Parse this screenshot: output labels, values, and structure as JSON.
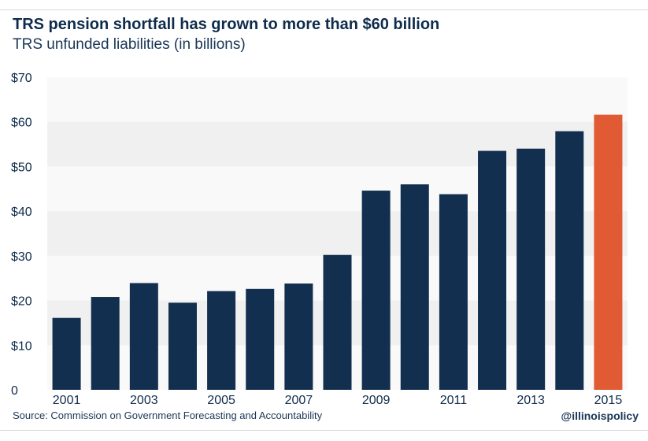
{
  "title": "TRS pension shortfall has grown to more than $60 billion",
  "subtitle": "TRS unfunded liabilities (in billions)",
  "source": "Source: Commission on Government Forecasting and Accountability",
  "handle": "@illinoispolicy",
  "colors": {
    "bar": "#132f4f",
    "highlight": "#e05a33",
    "band_dark": "#f0f0f0",
    "band_light": "#f9f9f9",
    "text": "#0f2c4c"
  },
  "chart_data": {
    "type": "bar",
    "x": [
      2001,
      2002,
      2003,
      2004,
      2005,
      2006,
      2007,
      2008,
      2009,
      2010,
      2011,
      2012,
      2013,
      2014,
      2015
    ],
    "values": [
      16.1,
      20.8,
      23.9,
      19.5,
      22.1,
      22.6,
      23.8,
      30.2,
      44.6,
      46.0,
      43.8,
      53.5,
      54.0,
      57.9,
      61.6
    ],
    "highlight_index": 14,
    "x_tick_labels": [
      "2001",
      "",
      "2003",
      "",
      "2005",
      "",
      "2007",
      "",
      "2009",
      "",
      "2011",
      "",
      "2013",
      "",
      "2015"
    ],
    "y_ticks": [
      0,
      10,
      20,
      30,
      40,
      50,
      60,
      70
    ],
    "y_tick_labels": [
      "0",
      "$10",
      "$20",
      "$30",
      "$40",
      "$50",
      "$60",
      "$70"
    ],
    "ylim": [
      0,
      70
    ],
    "grid": "alternating horizontal bands",
    "legend": "none"
  }
}
